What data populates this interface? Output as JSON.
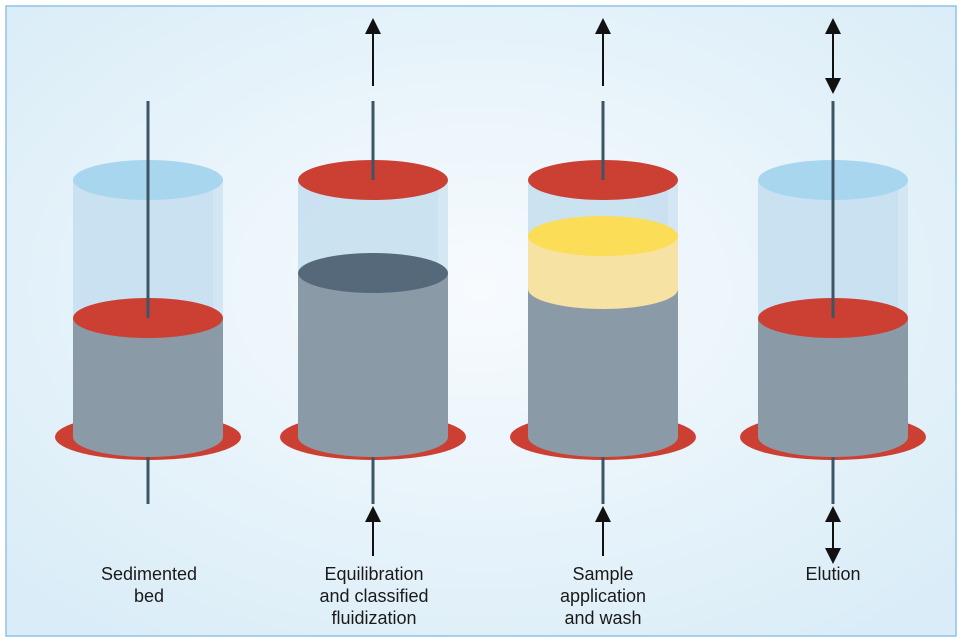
{
  "colors": {
    "background_light": "#f7fbfe",
    "background_edge": "#d9ecf7",
    "border": "#8ec4e2",
    "plate_red": "#cc3f33",
    "liquid_top": "#a9d6ef",
    "liquid_body": "#c6dff0",
    "bed_body": "#8b9aa7",
    "bed_top_expanded": "#56697b",
    "sample_top": "#fbdd57",
    "sample_band": "#f6e2a2",
    "shaft": "#3d5666",
    "arrow": "#111111"
  },
  "stages": [
    {
      "id": "sedimented",
      "caption": "Sedimented\nbed",
      "state": "packed bed, adaptor lowered onto bed, liquid above",
      "top_arrow": "none",
      "bottom_arrow": "none"
    },
    {
      "id": "equilibration",
      "caption": "Equilibration\nand classified\nfluidization",
      "state": "expanded bed, adaptor at top",
      "top_arrow": "up",
      "bottom_arrow": "up"
    },
    {
      "id": "sample",
      "caption": "Sample\napplication\nand wash",
      "state": "expanded bed with sample zone, adaptor at top",
      "top_arrow": "up",
      "bottom_arrow": "up"
    },
    {
      "id": "elution",
      "caption": "Elution",
      "state": "packed bed, adaptor lowered onto bed, liquid above",
      "top_arrow": "both",
      "bottom_arrow": "both"
    }
  ]
}
